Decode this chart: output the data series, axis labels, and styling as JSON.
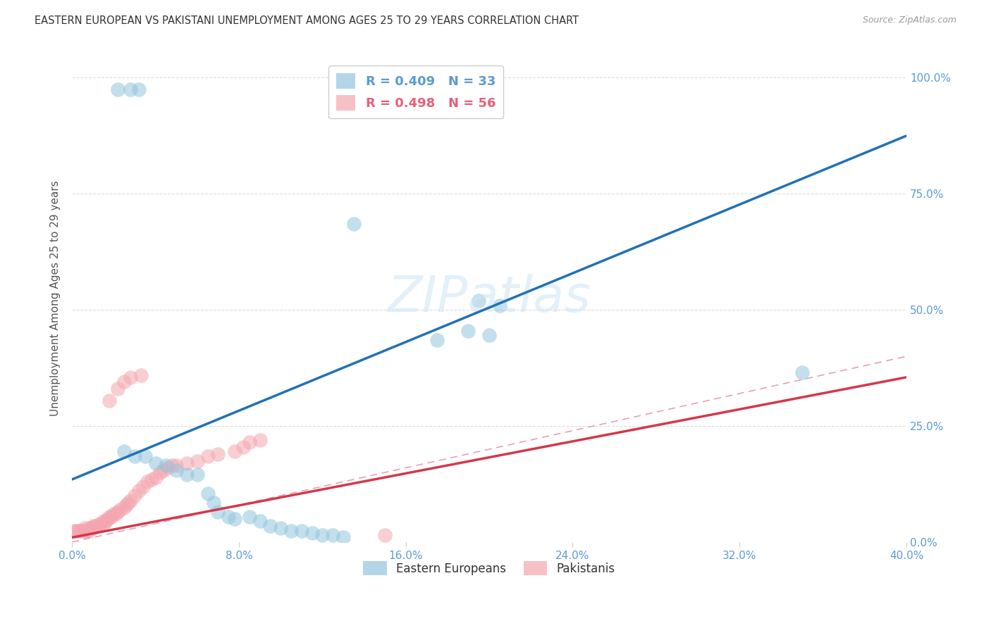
{
  "title": "EASTERN EUROPEAN VS PAKISTANI UNEMPLOYMENT AMONG AGES 25 TO 29 YEARS CORRELATION CHART",
  "source": "Source: ZipAtlas.com",
  "ylabel": "Unemployment Among Ages 25 to 29 years",
  "xlim": [
    0.0,
    0.4
  ],
  "ylim": [
    0.0,
    1.05
  ],
  "xtick_vals": [
    0.0,
    0.08,
    0.16,
    0.24,
    0.32,
    0.4
  ],
  "ytick_vals": [
    0.0,
    0.25,
    0.5,
    0.75,
    1.0
  ],
  "eastern_european_color": "#92c5de",
  "pakistani_color": "#f4a6b0",
  "legend_r_ee": "R = 0.409",
  "legend_n_ee": "N = 33",
  "legend_r_pk": "R = 0.498",
  "legend_n_pk": "N = 56",
  "watermark": "ZIPatlas",
  "ee_color_text": "#5b9bd5",
  "pk_color_text": "#e8607a",
  "ee_line_color": "#2171b5",
  "pk_line_color": "#d6374a",
  "axis_tick_color": "#5b9bd5",
  "ee_line_x": [
    0.0,
    0.4
  ],
  "ee_line_y": [
    0.135,
    0.875
  ],
  "pk_line_x": [
    0.0,
    0.4
  ],
  "pk_line_y": [
    0.01,
    0.355
  ],
  "eastern_europeans_x": [
    0.022,
    0.028,
    0.032,
    0.135,
    0.195,
    0.205,
    0.19,
    0.2,
    0.175,
    0.35,
    0.025,
    0.03,
    0.035,
    0.04,
    0.045,
    0.05,
    0.055,
    0.06,
    0.065,
    0.068,
    0.07,
    0.075,
    0.078,
    0.085,
    0.09,
    0.095,
    0.1,
    0.105,
    0.11,
    0.115,
    0.12,
    0.125,
    0.13
  ],
  "eastern_europeans_y": [
    0.975,
    0.975,
    0.975,
    0.685,
    0.52,
    0.51,
    0.455,
    0.445,
    0.435,
    0.365,
    0.195,
    0.185,
    0.185,
    0.17,
    0.165,
    0.155,
    0.145,
    0.145,
    0.105,
    0.085,
    0.065,
    0.055,
    0.05,
    0.055,
    0.045,
    0.035,
    0.03,
    0.025,
    0.025,
    0.02,
    0.015,
    0.015,
    0.01
  ],
  "pakistanis_x": [
    0.001,
    0.002,
    0.003,
    0.004,
    0.005,
    0.006,
    0.006,
    0.007,
    0.008,
    0.008,
    0.009,
    0.01,
    0.01,
    0.011,
    0.012,
    0.013,
    0.014,
    0.015,
    0.015,
    0.016,
    0.017,
    0.018,
    0.019,
    0.02,
    0.021,
    0.022,
    0.023,
    0.025,
    0.026,
    0.027,
    0.028,
    0.03,
    0.032,
    0.034,
    0.036,
    0.038,
    0.04,
    0.042,
    0.044,
    0.046,
    0.048,
    0.05,
    0.055,
    0.06,
    0.065,
    0.07,
    0.078,
    0.082,
    0.085,
    0.09,
    0.018,
    0.022,
    0.025,
    0.028,
    0.033,
    0.15
  ],
  "pakistanis_y": [
    0.025,
    0.025,
    0.025,
    0.025,
    0.025,
    0.025,
    0.03,
    0.025,
    0.025,
    0.03,
    0.03,
    0.03,
    0.035,
    0.035,
    0.035,
    0.04,
    0.04,
    0.04,
    0.045,
    0.045,
    0.05,
    0.055,
    0.055,
    0.06,
    0.06,
    0.065,
    0.07,
    0.075,
    0.08,
    0.085,
    0.09,
    0.1,
    0.11,
    0.12,
    0.13,
    0.135,
    0.14,
    0.15,
    0.155,
    0.16,
    0.165,
    0.165,
    0.17,
    0.175,
    0.185,
    0.19,
    0.195,
    0.205,
    0.215,
    0.22,
    0.305,
    0.33,
    0.345,
    0.355,
    0.36,
    0.015
  ]
}
